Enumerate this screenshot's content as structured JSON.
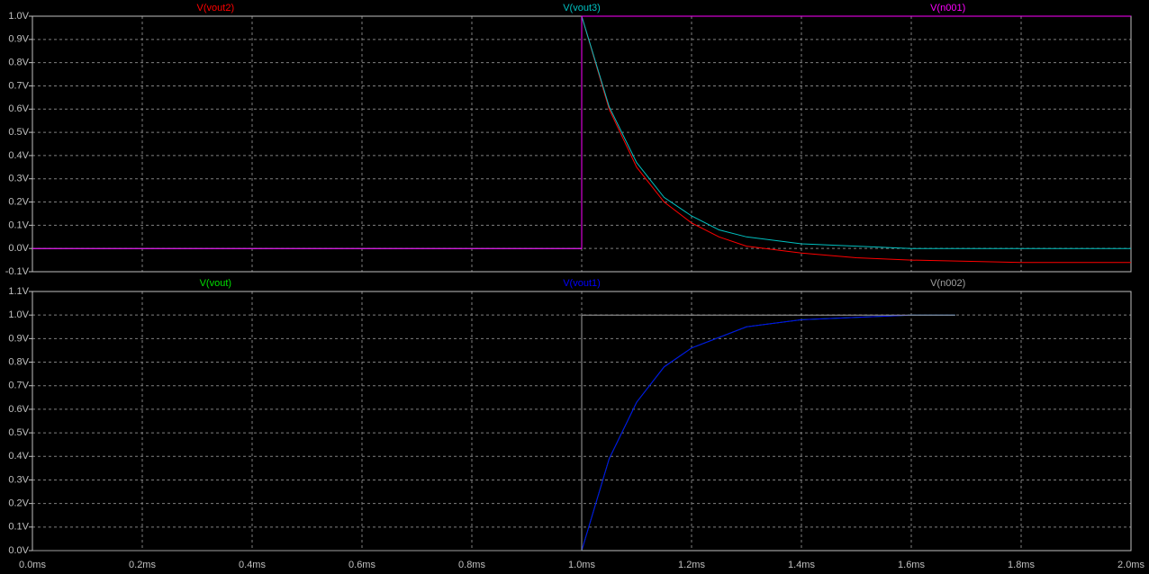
{
  "chart_data": [
    {
      "type": "line",
      "x": [
        0,
        1.0,
        1.0,
        1.05,
        1.1,
        1.15,
        1.2,
        1.25,
        1.3,
        1.4,
        1.5,
        1.6,
        1.7,
        1.8,
        1.9,
        2.0
      ],
      "xlim": [
        0,
        2.0
      ],
      "ylim": [
        -0.1,
        1.0
      ],
      "yticks": [
        {
          "value": -0.1,
          "label": "-0.1V"
        },
        {
          "value": 0,
          "label": "0.0V"
        },
        {
          "value": 0.1,
          "label": "0.1V"
        },
        {
          "value": 0.2,
          "label": "0.2V"
        },
        {
          "value": 0.3,
          "label": "0.3V"
        },
        {
          "value": 0.4,
          "label": "0.4V"
        },
        {
          "value": 0.5,
          "label": "0.5V"
        },
        {
          "value": 0.6,
          "label": "0.6V"
        },
        {
          "value": 0.7,
          "label": "0.7V"
        },
        {
          "value": 0.8,
          "label": "0.8V"
        },
        {
          "value": 0.9,
          "label": "0.9V"
        },
        {
          "value": 1.0,
          "label": "1.0V"
        }
      ],
      "grid": true,
      "series": [
        {
          "name": "V(vout2)",
          "color": "#ff0000",
          "values": [
            0,
            0,
            1,
            0.6,
            0.35,
            0.2,
            0.11,
            0.05,
            0.01,
            -0.02,
            -0.04,
            -0.05,
            -0.055,
            -0.06,
            -0.06,
            -0.06
          ]
        },
        {
          "name": "V(vout3)",
          "color": "#00c0c0",
          "values": [
            0,
            0,
            1,
            0.61,
            0.37,
            0.22,
            0.14,
            0.08,
            0.05,
            0.02,
            0.01,
            0,
            0,
            0,
            0,
            0
          ]
        },
        {
          "name": "V(n001)",
          "color": "#ff00ff",
          "values": [
            0,
            0,
            1,
            1,
            1,
            1,
            1,
            1,
            1,
            1,
            1,
            1,
            1,
            1,
            1,
            1
          ]
        }
      ]
    },
    {
      "type": "line",
      "x": [
        0,
        1.0,
        1.0,
        1.05,
        1.1,
        1.15,
        1.2,
        1.3,
        1.4,
        1.5,
        1.6,
        1.68
      ],
      "xlim": [
        0,
        2.0
      ],
      "xticks": [
        {
          "value": 0,
          "label": "0.0ms"
        },
        {
          "value": 0.2,
          "label": "0.2ms"
        },
        {
          "value": 0.4,
          "label": "0.4ms"
        },
        {
          "value": 0.6,
          "label": "0.6ms"
        },
        {
          "value": 0.8,
          "label": "0.8ms"
        },
        {
          "value": 1.0,
          "label": "1.0ms"
        },
        {
          "value": 1.2,
          "label": "1.2ms"
        },
        {
          "value": 1.4,
          "label": "1.4ms"
        },
        {
          "value": 1.6,
          "label": "1.6ms"
        },
        {
          "value": 1.8,
          "label": "1.8ms"
        },
        {
          "value": 2.0,
          "label": "2.0ms"
        }
      ],
      "ylim": [
        0,
        1.1
      ],
      "yticks": [
        {
          "value": 0,
          "label": "0.0V"
        },
        {
          "value": 0.1,
          "label": "0.1V"
        },
        {
          "value": 0.2,
          "label": "0.2V"
        },
        {
          "value": 0.3,
          "label": "0.3V"
        },
        {
          "value": 0.4,
          "label": "0.4V"
        },
        {
          "value": 0.5,
          "label": "0.5V"
        },
        {
          "value": 0.6,
          "label": "0.6V"
        },
        {
          "value": 0.7,
          "label": "0.7V"
        },
        {
          "value": 0.8,
          "label": "0.8V"
        },
        {
          "value": 0.9,
          "label": "0.9V"
        },
        {
          "value": 1.0,
          "label": "1.0V"
        },
        {
          "value": 1.1,
          "label": "1.1V"
        }
      ],
      "grid": true,
      "series": [
        {
          "name": "V(vout)",
          "color": "#00e000",
          "values": [
            0,
            0,
            0,
            0.39,
            0.63,
            0.78,
            0.86,
            0.95,
            0.98,
            0.99,
            1.0,
            1.0
          ]
        },
        {
          "name": "V(vout1)",
          "color": "#0000ff",
          "values": [
            0,
            0,
            0,
            0.39,
            0.63,
            0.78,
            0.86,
            0.95,
            0.98,
            0.99,
            1.0,
            1.0
          ]
        },
        {
          "name": "V(n002)",
          "color": "#a0a0a0",
          "values": [
            0,
            0,
            1,
            1,
            1,
            1,
            1,
            1,
            1,
            1,
            1,
            1
          ]
        }
      ]
    }
  ]
}
